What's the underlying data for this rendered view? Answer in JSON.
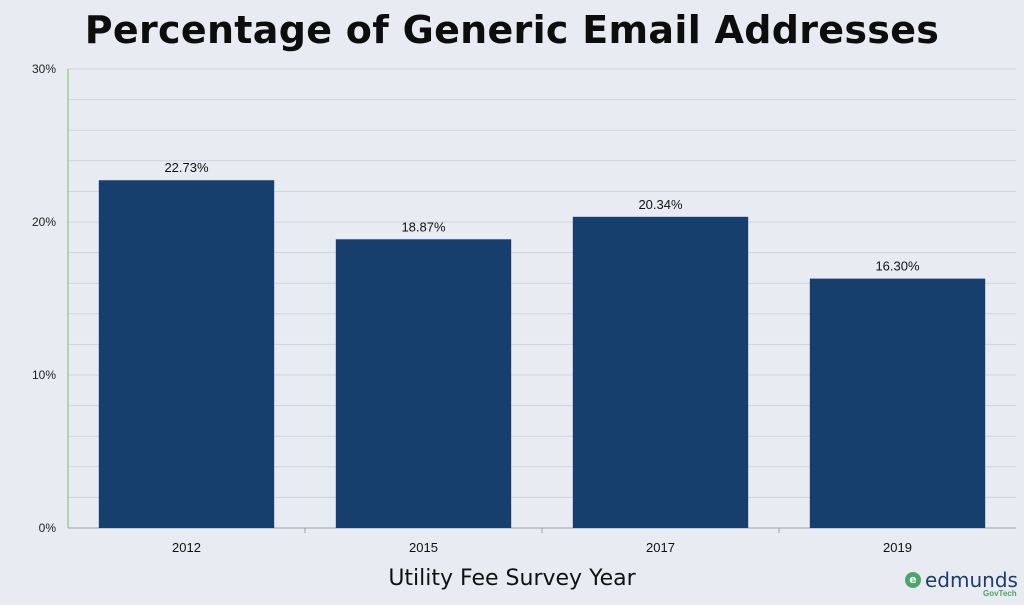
{
  "chart_data": {
    "type": "bar",
    "title": "Percentage of Generic Email Addresses",
    "xlabel": "Utility Fee Survey Year",
    "ylabel": "",
    "categories": [
      "2012",
      "2015",
      "2017",
      "2019"
    ],
    "values": [
      22.73,
      18.87,
      20.34,
      16.3
    ],
    "data_labels": [
      "22.73%",
      "18.87%",
      "20.34%",
      "16.30%"
    ],
    "ylim": [
      0,
      30
    ],
    "yticks": [
      0,
      10,
      20,
      30
    ],
    "ytick_labels": [
      "0%",
      "10%",
      "20%",
      "30%"
    ],
    "grid": true,
    "bar_color": "#173f6e",
    "axis_color": "#7dcf7d"
  },
  "brand": {
    "name": "edmunds",
    "sub": "GovTech",
    "icon": "e-logo-icon",
    "color": "#1a3d6b",
    "accent": "#4aa66b"
  }
}
